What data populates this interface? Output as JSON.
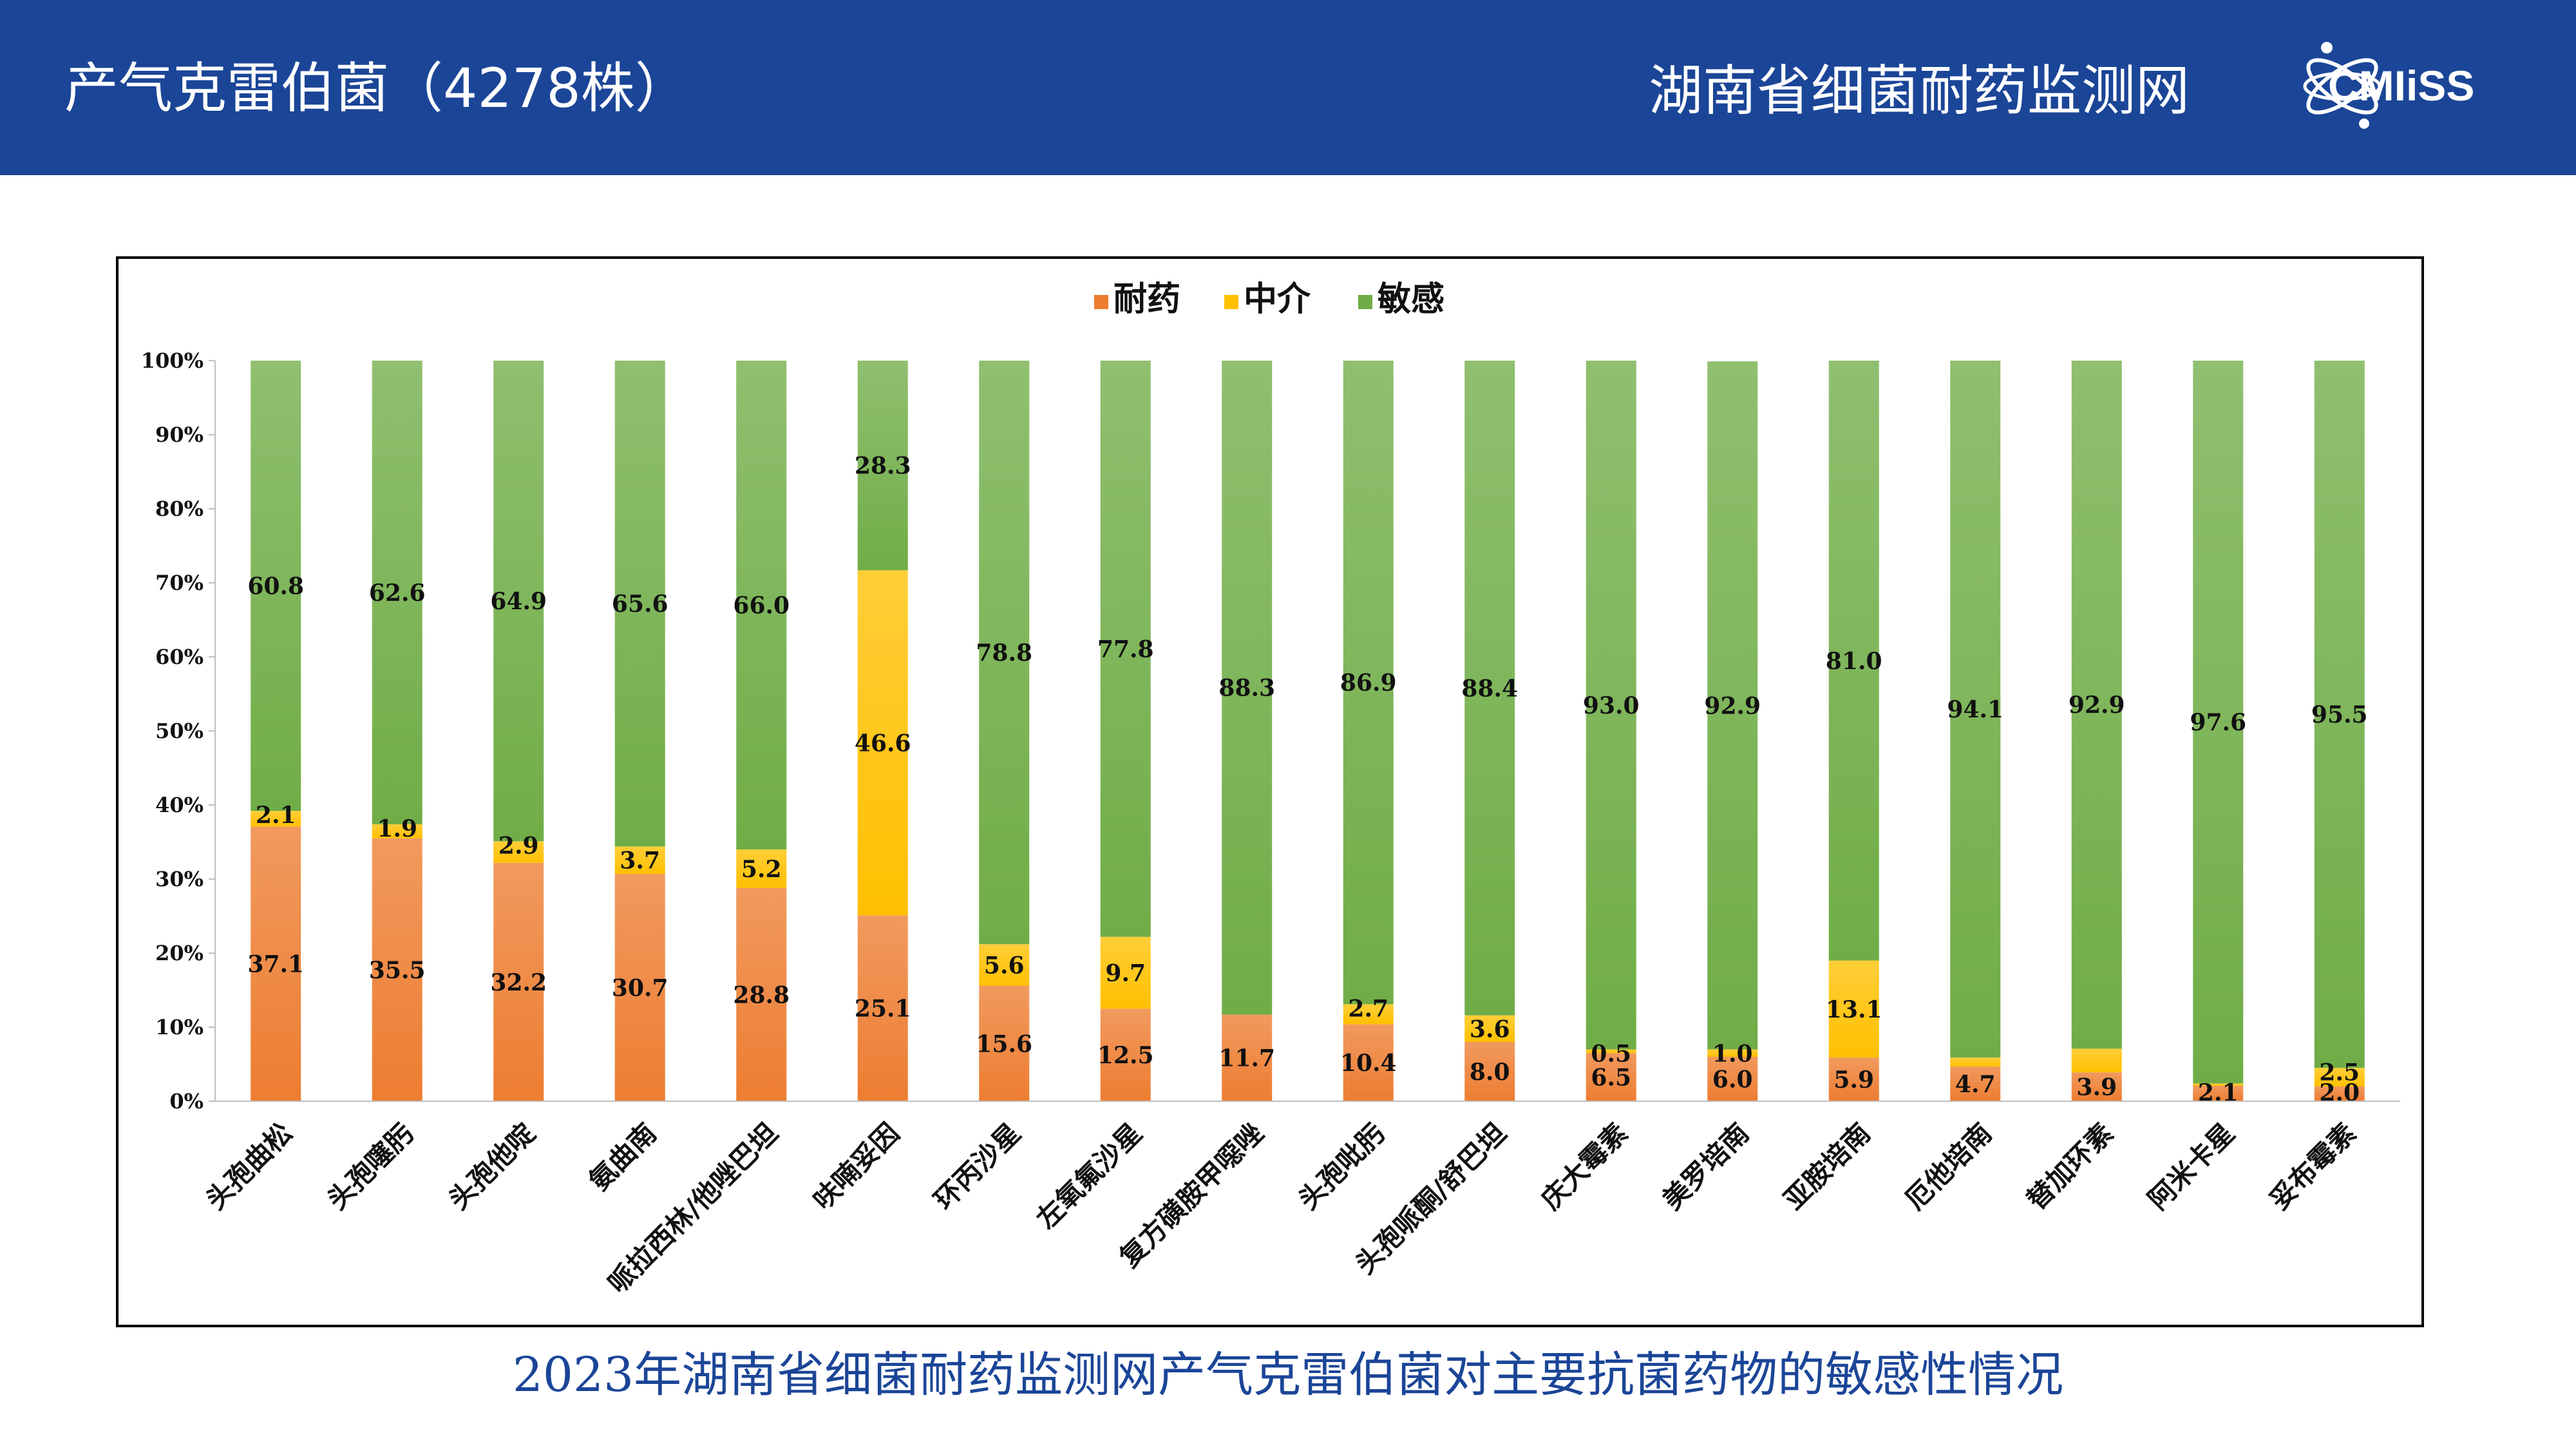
{
  "header": {
    "title": "产气克雷伯菌（4278株）",
    "network_name": "湖南省细菌耐药监测网",
    "logo_text": "CMIiSS"
  },
  "caption": "2023年湖南省细菌耐药监测网产气克雷伯菌对主要抗菌药物的敏感性情况",
  "colors": {
    "header_bg": "#1b4597",
    "resistant": "#ed7d31",
    "intermediate": "#ffc000",
    "susceptible": "#70ad47"
  },
  "chart_data": {
    "type": "bar",
    "stacked": true,
    "title": "",
    "xlabel": "",
    "ylabel": "",
    "ylim": [
      0,
      100
    ],
    "yticks": [
      "0%",
      "10%",
      "20%",
      "30%",
      "40%",
      "50%",
      "60%",
      "70%",
      "80%",
      "90%",
      "100%"
    ],
    "legend_position": "top-center",
    "grid": false,
    "categories": [
      "头孢曲松",
      "头孢噻肟",
      "头孢他啶",
      "氨曲南",
      "哌拉西林/他唑巴坦",
      "呋喃妥因",
      "环丙沙星",
      "左氧氟沙星",
      "复方磺胺甲噁唑",
      "头孢吡肟",
      "头孢哌酮/舒巴坦",
      "庆大霉素",
      "美罗培南",
      "亚胺培南",
      "厄他培南",
      "替加环素",
      "阿米卡星",
      "妥布霉素"
    ],
    "series": [
      {
        "name": "耐药",
        "color": "#ed7d31",
        "values": [
          37.1,
          35.5,
          32.2,
          30.7,
          28.8,
          25.1,
          15.6,
          12.5,
          11.7,
          10.4,
          8.0,
          6.5,
          6.0,
          5.9,
          4.7,
          3.9,
          2.1,
          2.0
        ]
      },
      {
        "name": "中介",
        "color": "#ffc000",
        "values": [
          2.1,
          1.9,
          2.9,
          3.7,
          5.2,
          46.6,
          5.6,
          9.7,
          0.0,
          2.7,
          3.6,
          0.5,
          1.0,
          13.1,
          1.2,
          3.2,
          0.3,
          2.5
        ]
      },
      {
        "name": "敏感",
        "color": "#70ad47",
        "values": [
          60.8,
          62.6,
          64.9,
          65.6,
          66.0,
          28.3,
          78.8,
          77.8,
          88.3,
          86.9,
          88.4,
          93.0,
          92.9,
          81.0,
          94.1,
          92.9,
          97.6,
          95.5
        ]
      }
    ],
    "data_labels": [
      {
        "r": "37.1",
        "i": "2.1",
        "s": "60.8"
      },
      {
        "r": "35.5",
        "i": "1.9",
        "s": "62.6"
      },
      {
        "r": "32.2",
        "i": "2.9",
        "s": "64.9"
      },
      {
        "r": "30.7",
        "i": "3.7",
        "s": "65.6"
      },
      {
        "r": "28.8",
        "i": "5.2",
        "s": "66.0"
      },
      {
        "r": "25.1",
        "i": "46.6",
        "s": "28.3"
      },
      {
        "r": "15.6",
        "i": "5.6",
        "s": "78.8"
      },
      {
        "r": "12.5",
        "i": "9.7",
        "s": "77.8"
      },
      {
        "r": "11.7",
        "i": "",
        "s": "88.3"
      },
      {
        "r": "10.4",
        "i": "2.7",
        "s": "86.9"
      },
      {
        "r": "8.0",
        "i": "3.6",
        "s": "88.4"
      },
      {
        "r": "6.5",
        "i": "0.5",
        "s": "93.0"
      },
      {
        "r": "6.0",
        "i": "1.0",
        "s": "92.9"
      },
      {
        "r": "5.9",
        "i": "13.1",
        "s": "81.0"
      },
      {
        "r": "4.7",
        "i": "",
        "s": "94.1"
      },
      {
        "r": "3.9",
        "i": "",
        "s": "92.9"
      },
      {
        "r": "2.1",
        "i": "",
        "s": "97.6"
      },
      {
        "r": "2.0",
        "i": "2.5",
        "s": "95.5"
      }
    ]
  }
}
